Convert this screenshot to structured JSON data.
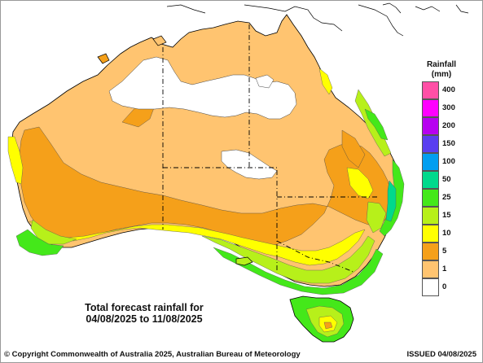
{
  "map": {
    "caption_line1": "Total forecast rainfall for",
    "caption_line2": "04/08/2025 to 11/08/2025",
    "copyright": "© Copyright Commonwealth of Australia 2025, Australian Bureau of Meteorology",
    "issued": "ISSUED 04/08/2025",
    "region": "Australia"
  },
  "legend": {
    "title_line1": "Rainfall",
    "title_line2": "(mm)",
    "classes": [
      {
        "label": "400",
        "color": "#ff4fa6"
      },
      {
        "label": "300",
        "color": "#ff00ff"
      },
      {
        "label": "200",
        "color": "#b700f0"
      },
      {
        "label": "150",
        "color": "#5a3ef0"
      },
      {
        "label": "100",
        "color": "#009ef0"
      },
      {
        "label": "50",
        "color": "#00d98c"
      },
      {
        "label": "25",
        "color": "#44e81a"
      },
      {
        "label": "15",
        "color": "#b7f01a"
      },
      {
        "label": "10",
        "color": "#ffff00"
      },
      {
        "label": "5",
        "color": "#f5a01a"
      },
      {
        "label": "1",
        "color": "#ffc470"
      },
      {
        "label": "0",
        "color": "#ffffff"
      }
    ]
  },
  "colors": {
    "dry": "#ffffff",
    "light": "#ffc470",
    "moderate": "#f5a01a",
    "yellow": "#ffff00",
    "lime": "#b7f01a",
    "green": "#44e81a",
    "teal": "#00d98c",
    "border": "#000000"
  }
}
